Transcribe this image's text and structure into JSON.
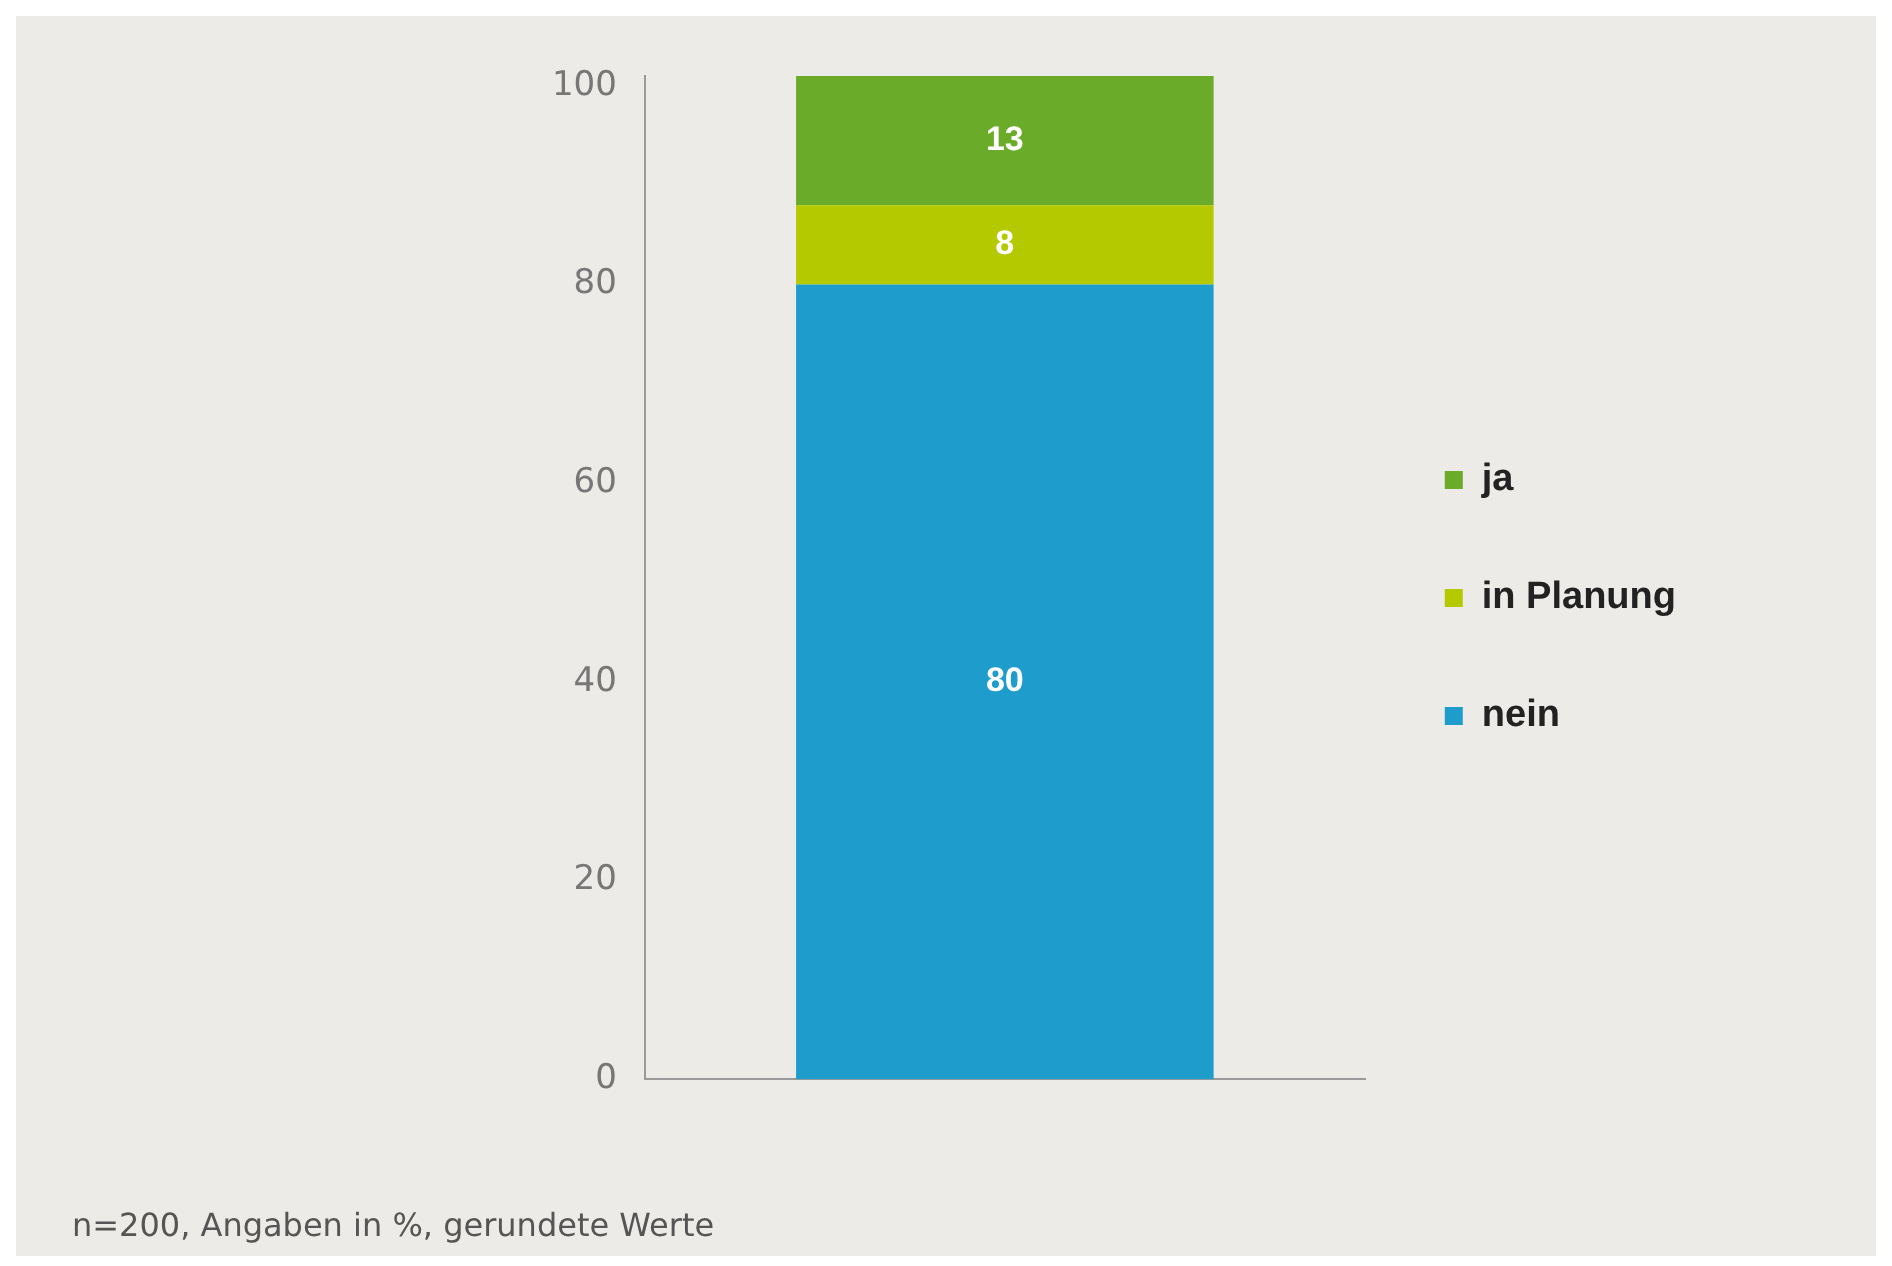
{
  "chart_data": {
    "type": "bar",
    "categories": [
      null
    ],
    "stacked": true,
    "series": [
      {
        "name": "nein",
        "color": "#1e9dcc",
        "values": [
          80
        ]
      },
      {
        "name": "in Planung",
        "color": "#b5c900",
        "values": [
          8
        ]
      },
      {
        "name": "ja",
        "color": "#6aac2a",
        "values": [
          13
        ]
      }
    ],
    "ylim": [
      0,
      101
    ],
    "yticks": [
      0,
      20,
      40,
      60,
      80,
      100
    ],
    "grid": false,
    "legend": "right",
    "data_labels": true,
    "annotations": [
      "n=200, Angaben in %, gerundete Werte"
    ]
  }
}
